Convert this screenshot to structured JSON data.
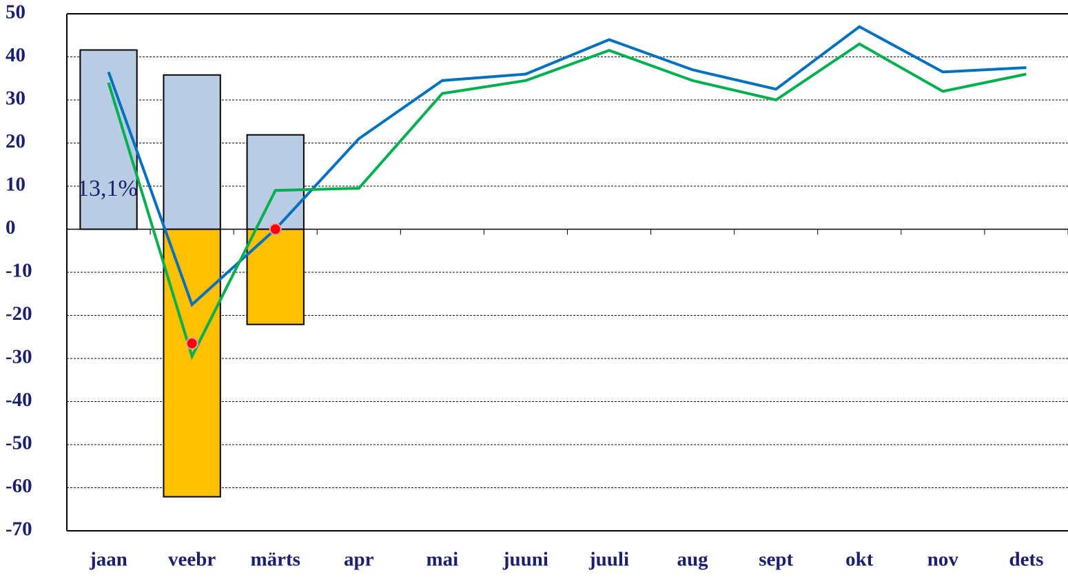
{
  "chart_data": {
    "type": "bar",
    "categories": [
      "jaan",
      "veebr",
      "märts",
      "apr",
      "mai",
      "juuni",
      "juuli",
      "aug",
      "sept",
      "okt",
      "nov",
      "dets"
    ],
    "series": [
      {
        "type": "bar",
        "color": "#b8cce4",
        "values": [
          41.6,
          35.8,
          21.9,
          null,
          null,
          null,
          null,
          null,
          null,
          null,
          null,
          null
        ]
      },
      {
        "type": "bar",
        "color": "#ffc000",
        "values": [
          null,
          -62.1,
          -22.1,
          null,
          null,
          null,
          null,
          null,
          null,
          null,
          null,
          null
        ]
      },
      {
        "type": "line",
        "color": "#0070c0",
        "values": [
          36.5,
          -17.5,
          0,
          21,
          34.5,
          36,
          44,
          37,
          32.5,
          47,
          36.5,
          37.5
        ]
      },
      {
        "type": "line",
        "color": "#00b050",
        "values": [
          34,
          -29.5,
          9,
          9.5,
          31.5,
          34.5,
          41.5,
          34.5,
          30,
          43,
          32,
          36
        ]
      },
      {
        "type": "marker",
        "color": "#ff0000",
        "values": [
          null,
          -26.5,
          0,
          null,
          null,
          null,
          null,
          null,
          null,
          null,
          null,
          null
        ]
      }
    ],
    "annotation": "13,1%",
    "ylim": [
      -70,
      50
    ],
    "yticks": [
      -70,
      -60,
      -50,
      -40,
      -30,
      -20,
      -10,
      0,
      10,
      20,
      30,
      40,
      50
    ],
    "grid": true
  }
}
